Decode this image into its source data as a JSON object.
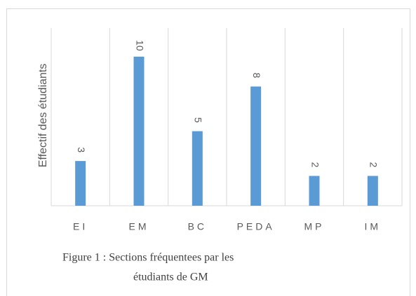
{
  "chart_data": {
    "type": "bar",
    "y_label": "Effectif des étudiants",
    "categories": [
      "EI",
      "EM",
      "BC",
      "PEDA",
      "MP",
      "IM"
    ],
    "values": [
      3,
      10,
      5,
      8,
      2,
      2
    ],
    "color": "#5b9bd5",
    "grid": true,
    "caption": [
      "Figure 1 : Sections fréquentees  par les",
      "étudiants de GM"
    ]
  }
}
